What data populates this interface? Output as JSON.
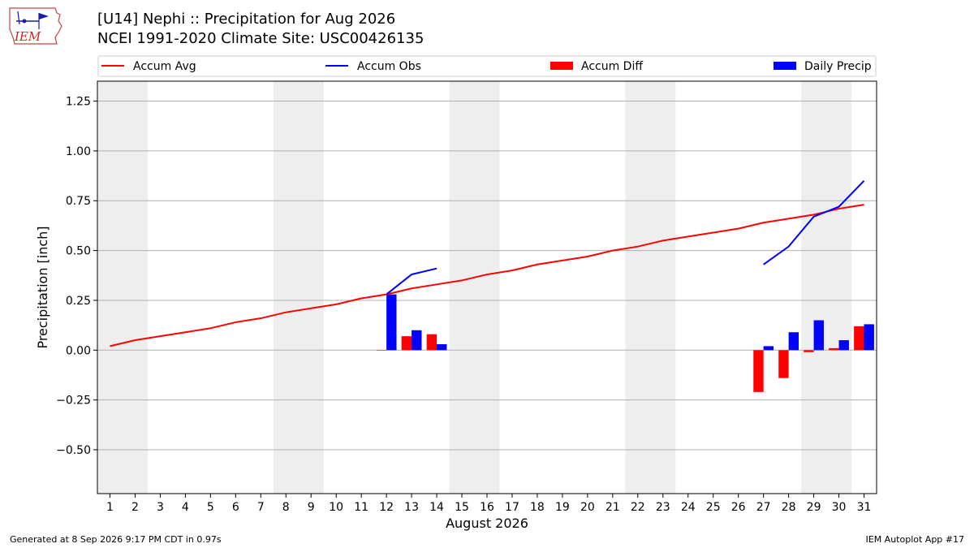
{
  "header": {
    "logo_text": "IEM",
    "title": "[U14] Nephi :: Precipitation for Aug 2026",
    "subtitle": "NCEI 1991-2020 Climate Site: USC00426135"
  },
  "footer": {
    "generated": "Generated at 8 Sep 2026 9:17 PM CDT in 0.97s",
    "app": "IEM Autoplot App #17"
  },
  "colors": {
    "avg": "#ff0000",
    "obs": "#0000ff",
    "diff": "#ff0000",
    "daily": "#0000ff",
    "weekend": "#eeeeee",
    "grid": "#b0b0b0"
  },
  "chart_data": {
    "type": "bar",
    "xlabel": "August 2026",
    "ylabel": "Precipitation [inch]",
    "xlim": [
      0.5,
      31.5
    ],
    "ylim": [
      -0.72,
      1.35
    ],
    "yticks": [
      -0.5,
      -0.25,
      0,
      0.25,
      0.5,
      0.75,
      1.0,
      1.25
    ],
    "ytick_labels": [
      "−0.50",
      "−0.25",
      "0.00",
      "0.25",
      "0.50",
      "0.75",
      "1.00",
      "1.25"
    ],
    "grid": "horizontal",
    "legend_placement": "top",
    "days": [
      1,
      2,
      3,
      4,
      5,
      6,
      7,
      8,
      9,
      10,
      11,
      12,
      13,
      14,
      15,
      16,
      17,
      18,
      19,
      20,
      21,
      22,
      23,
      24,
      25,
      26,
      27,
      28,
      29,
      30,
      31
    ],
    "weekend_bands": [
      [
        1,
        2
      ],
      [
        8,
        9
      ],
      [
        15,
        16
      ],
      [
        22,
        23
      ],
      [
        29,
        30
      ]
    ],
    "legend": [
      "Accum Avg",
      "Accum Obs",
      "Accum Diff",
      "Daily Precip"
    ],
    "series": [
      {
        "name": "Accum Avg",
        "type": "line",
        "x": [
          1,
          2,
          3,
          4,
          5,
          6,
          7,
          8,
          9,
          10,
          11,
          12,
          13,
          14,
          15,
          16,
          17,
          18,
          19,
          20,
          21,
          22,
          23,
          24,
          25,
          26,
          27,
          28,
          29,
          30,
          31
        ],
        "values": [
          0.02,
          0.05,
          0.07,
          0.09,
          0.11,
          0.14,
          0.16,
          0.19,
          0.21,
          0.23,
          0.26,
          0.28,
          0.31,
          0.33,
          0.35,
          0.38,
          0.4,
          0.43,
          0.45,
          0.47,
          0.5,
          0.52,
          0.55,
          0.57,
          0.59,
          0.61,
          0.64,
          0.66,
          0.68,
          0.71,
          0.73
        ]
      },
      {
        "name": "Accum Obs",
        "type": "line",
        "segments": [
          {
            "x": [
              12,
              13,
              14
            ],
            "values": [
              0.28,
              0.38,
              0.41
            ]
          },
          {
            "x": [
              27,
              28,
              29,
              30,
              31
            ],
            "values": [
              0.43,
              0.52,
              0.67,
              0.72,
              0.85
            ]
          }
        ]
      },
      {
        "name": "Accum Diff",
        "type": "bar",
        "x": [
          12,
          13,
          14,
          27,
          28,
          29,
          30,
          31
        ],
        "values": [
          0.0,
          0.07,
          0.08,
          -0.21,
          -0.14,
          -0.01,
          0.01,
          0.12
        ]
      },
      {
        "name": "Daily Precip",
        "type": "bar",
        "x": [
          12,
          13,
          14,
          27,
          28,
          29,
          30,
          31
        ],
        "values": [
          0.28,
          0.1,
          0.03,
          0.02,
          0.09,
          0.15,
          0.05,
          0.13
        ]
      }
    ]
  }
}
